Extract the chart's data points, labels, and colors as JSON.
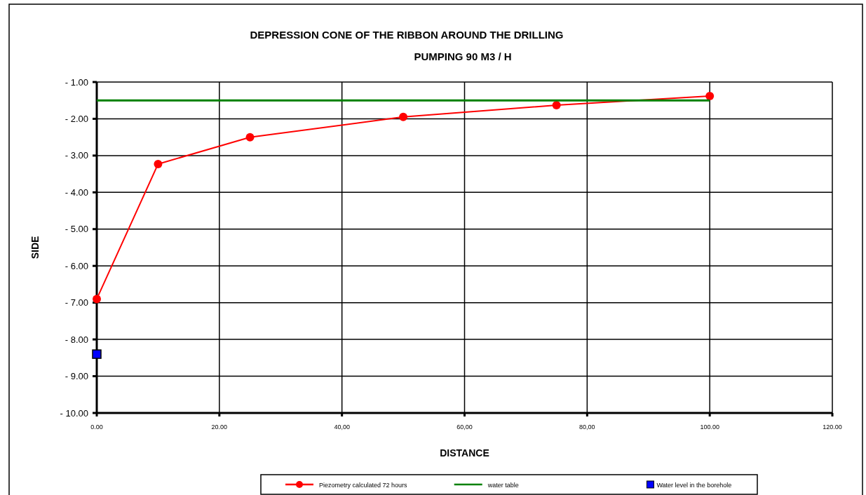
{
  "chart_data": {
    "type": "line",
    "title": "DEPRESSION CONE OF THE RIBBON AROUND THE DRILLING",
    "subtitle": "PUMPING 90 M3 / H",
    "xlabel": "DISTANCE",
    "ylabel": "SIDE",
    "series": [
      {
        "name": "Piezometry calculated 72 hours",
        "color": "#ff0000",
        "x": [
          0,
          10,
          25,
          50,
          75,
          100
        ],
        "values": [
          -6.9,
          -3.23,
          -2.5,
          -1.95,
          -1.63,
          -1.38
        ],
        "marker": "circle"
      },
      {
        "name": "water table",
        "color": "#008000",
        "x": [
          0,
          10,
          25,
          50,
          75,
          100
        ],
        "values": [
          -1.5,
          -1.5,
          -1.5,
          -1.5,
          -1.5,
          -1.5
        ],
        "marker": "none"
      },
      {
        "name": "Water level in the borehole",
        "type": "scatter",
        "color": "#0000ff",
        "x": [
          0
        ],
        "values": [
          -8.4
        ],
        "marker": "square"
      }
    ],
    "xlim": [
      0,
      120
    ],
    "xticks": [
      {
        "value": 0,
        "label": "0.00"
      },
      {
        "value": 20,
        "label": "20.00"
      },
      {
        "value": 40,
        "label": "40,00"
      },
      {
        "value": 60,
        "label": "60,00"
      },
      {
        "value": 80,
        "label": "80,00"
      },
      {
        "value": 100,
        "label": "100.00"
      },
      {
        "value": 120,
        "label": "120.00"
      }
    ],
    "ylim": [
      -10,
      -1
    ],
    "yticks": [
      {
        "value": -1,
        "label": "- 1.00"
      },
      {
        "value": -2,
        "label": "- 2.00"
      },
      {
        "value": -3,
        "label": "- 3.00"
      },
      {
        "value": -4,
        "label": "- 4.00"
      },
      {
        "value": -5,
        "label": "- 5.00"
      },
      {
        "value": -6,
        "label": "- 6.00"
      },
      {
        "value": -7,
        "label": "- 7.00"
      },
      {
        "value": -8,
        "label": "- 8.00"
      },
      {
        "value": -9,
        "label": "- 9.00"
      },
      {
        "value": -10,
        "label": "- 10.00"
      }
    ],
    "grid": true,
    "legend": "bottom"
  }
}
